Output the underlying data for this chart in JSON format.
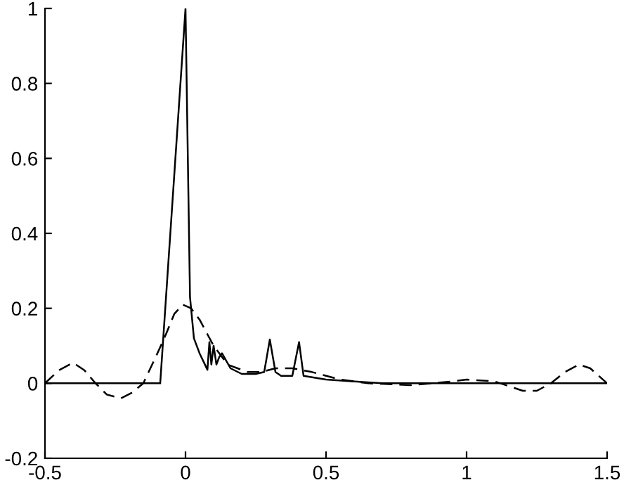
{
  "chart_data": {
    "type": "line",
    "series": [
      {
        "color": "#000000",
        "line_style": "solid",
        "x": [
          -0.5,
          -0.09,
          0.0,
          0.016,
          0.03,
          0.05,
          0.078,
          0.085,
          0.092,
          0.1,
          0.11,
          0.12,
          0.13,
          0.16,
          0.2,
          0.25,
          0.28,
          0.3,
          0.32,
          0.34,
          0.38,
          0.404,
          0.42,
          0.5,
          0.6,
          0.7,
          1.5
        ],
        "values": [
          0,
          0,
          1,
          0.23,
          0.12,
          0.08,
          0.036,
          0.11,
          0.05,
          0.1,
          0.05,
          0.07,
          0.08,
          0.04,
          0.025,
          0.025,
          0.03,
          0.117,
          0.03,
          0.02,
          0.02,
          0.11,
          0.02,
          0.01,
          0.005,
          0,
          0
        ]
      },
      {
        "color": "#000000",
        "line_style": "dashed",
        "x": [
          -0.5,
          -0.45,
          -0.4,
          -0.36,
          -0.32,
          -0.28,
          -0.23,
          -0.19,
          -0.15,
          -0.1,
          -0.07,
          -0.04,
          -0.01,
          0.02,
          0.05,
          0.1,
          0.15,
          0.22,
          0.27,
          0.32,
          0.38,
          0.45,
          0.55,
          0.65,
          0.8,
          0.95,
          1.0,
          1.1,
          1.2,
          1.25,
          1.3,
          1.35,
          1.4,
          1.44,
          1.47,
          1.5
        ],
        "values": [
          0,
          0.035,
          0.055,
          0.035,
          0,
          -0.03,
          -0.04,
          -0.025,
          0,
          0.08,
          0.13,
          0.185,
          0.21,
          0.2,
          0.17,
          0.1,
          0.05,
          0.03,
          0.03,
          0.04,
          0.04,
          0.03,
          0.01,
          0,
          -0.005,
          0.005,
          0.01,
          0.005,
          -0.02,
          -0.02,
          0,
          0.03,
          0.05,
          0.04,
          0.02,
          0
        ]
      }
    ],
    "xlim": [
      -0.5,
      1.5
    ],
    "xticks": [
      -0.5,
      0,
      0.5,
      1,
      1.5
    ],
    "ylim": [
      -0.2,
      1
    ],
    "yticks": [
      -0.2,
      0,
      0.2,
      0.4,
      0.6,
      0.8,
      1
    ],
    "grid": false,
    "legend": false,
    "marker": "none"
  }
}
